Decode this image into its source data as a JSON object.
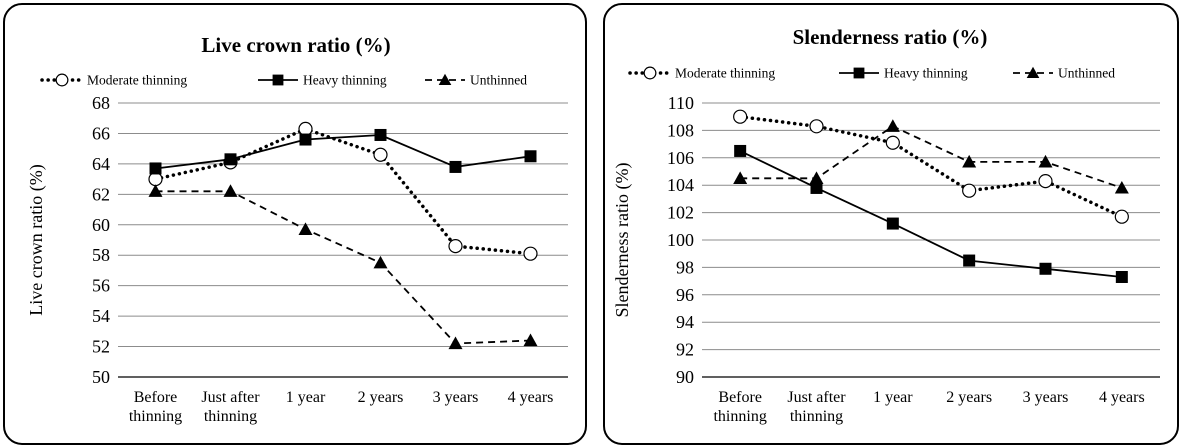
{
  "chart_data": [
    {
      "type": "line",
      "title": "Live crown ratio (%)",
      "xlabel": "",
      "ylabel": "Live crown ratio (%)",
      "categories": [
        [
          "Before",
          "thinning"
        ],
        [
          "Just after",
          "thinning"
        ],
        [
          "1 year"
        ],
        [
          "2 years"
        ],
        [
          "3 years"
        ],
        [
          "4 years"
        ]
      ],
      "ylim": [
        50,
        68
      ],
      "ytick_step": 2,
      "yticks": [
        "50",
        "52",
        "54",
        "56",
        "58",
        "60",
        "62",
        "64",
        "66",
        "68"
      ],
      "grid": true,
      "legend_position": "top",
      "series": [
        {
          "name": "Moderate thinning",
          "values": [
            63.0,
            64.1,
            66.3,
            64.6,
            58.6,
            58.1
          ],
          "line": "dotted",
          "marker": "open-circle",
          "color": "#000000"
        },
        {
          "name": "Heavy thinning",
          "values": [
            63.7,
            64.3,
            65.6,
            65.9,
            63.8,
            64.5
          ],
          "line": "solid",
          "marker": "square",
          "color": "#000000"
        },
        {
          "name": "Unthinned",
          "values": [
            62.2,
            62.2,
            59.7,
            57.5,
            52.2,
            52.4
          ],
          "line": "dashed",
          "marker": "triangle",
          "color": "#000000"
        }
      ]
    },
    {
      "type": "line",
      "title": "Slenderness ratio (%)",
      "xlabel": "",
      "ylabel": "Slenderness ratio (%)",
      "categories": [
        [
          "Before",
          "thinning"
        ],
        [
          "Just after",
          "thinning"
        ],
        [
          "1 year"
        ],
        [
          "2 years"
        ],
        [
          "3 years"
        ],
        [
          "4 years"
        ]
      ],
      "ylim": [
        90,
        110
      ],
      "ytick_step": 2,
      "yticks": [
        "90",
        "92",
        "94",
        "96",
        "98",
        "100",
        "102",
        "104",
        "106",
        "108",
        "110"
      ],
      "grid": true,
      "legend_position": "top",
      "series": [
        {
          "name": "Moderate thinning",
          "values": [
            109.0,
            108.3,
            107.1,
            103.6,
            104.3,
            101.7
          ],
          "line": "dotted",
          "marker": "open-circle",
          "color": "#000000"
        },
        {
          "name": "Heavy thinning",
          "values": [
            106.5,
            103.8,
            101.2,
            98.5,
            97.9,
            97.3
          ],
          "line": "solid",
          "marker": "square",
          "color": "#000000"
        },
        {
          "name": "Unthinned",
          "values": [
            104.5,
            104.5,
            108.3,
            105.7,
            105.7,
            103.8
          ],
          "line": "dashed",
          "marker": "triangle",
          "color": "#000000"
        }
      ]
    }
  ]
}
